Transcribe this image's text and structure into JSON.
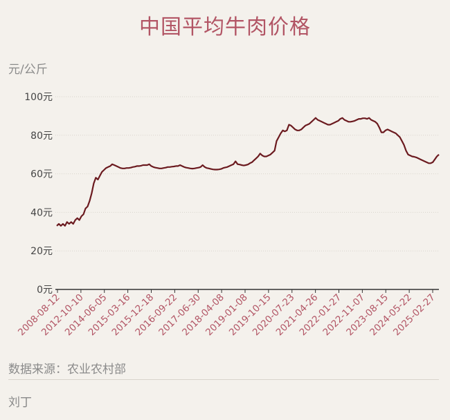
{
  "title": "中国平均牛肉价格",
  "unit_label": "元/公斤",
  "source": "数据来源：农业农村部",
  "author": "刘丁",
  "colors": {
    "line": "#6b1a1f",
    "title": "#b25565",
    "axis": "#444444",
    "tick_label": "#b25565",
    "gray_text": "#8a8a8a"
  },
  "chart_data": {
    "type": "line",
    "title": "中国平均牛肉价格",
    "ylabel": "元/公斤",
    "xlabel": "",
    "ylim": [
      0,
      100
    ],
    "grid": true,
    "yticks": [
      0,
      20,
      40,
      60,
      80,
      100
    ],
    "ytick_labels": [
      "0元",
      "20元",
      "40元",
      "60元",
      "80元",
      "100元"
    ],
    "xticks": [
      "2008-08-12",
      "2012-10-10",
      "2014-06-05",
      "2015-03-16",
      "2015-12-18",
      "2016-09-22",
      "2017-06-30",
      "2018-04-08",
      "2019-01-08",
      "2019-10-15",
      "2020-07-23",
      "2021-04-26",
      "2022-01-27",
      "2022-11-07",
      "2023-08-15",
      "2024-05-22",
      "2025-02-27"
    ],
    "series": [
      {
        "values": [
          33,
          34,
          33,
          34,
          33,
          35,
          34,
          35,
          34,
          36,
          37,
          36,
          38,
          39,
          42,
          43,
          46,
          50,
          55,
          58,
          57,
          59,
          61,
          62,
          63,
          63.5,
          64,
          65,
          64.5,
          64,
          63.5,
          63,
          62.8,
          62.8,
          63,
          63,
          63.2,
          63.5,
          63.7,
          64,
          64,
          64.2,
          64.5,
          64.5,
          64.5,
          65,
          64,
          63.5,
          63.2,
          63,
          62.8,
          62.8,
          63,
          63.2,
          63.5,
          63.5,
          63.7,
          63.8,
          64,
          64,
          64.5,
          64,
          63.5,
          63.2,
          63,
          62.8,
          62.7,
          62.8,
          63,
          63.2,
          63.5,
          64.5,
          63.5,
          63,
          62.8,
          62.5,
          62.3,
          62.2,
          62.2,
          62.3,
          62.5,
          63,
          63.3,
          63.5,
          64,
          64.5,
          65,
          66.5,
          65,
          64.8,
          64.5,
          64.3,
          64.5,
          64.8,
          65.5,
          66,
          67,
          68,
          69,
          70.5,
          69.5,
          69,
          69,
          69.5,
          70,
          71,
          72,
          77,
          79,
          81,
          82.5,
          82,
          82.5,
          85.5,
          85,
          84,
          83,
          82.5,
          82.5,
          83,
          84,
          85,
          85.5,
          86,
          87,
          88,
          89,
          88,
          87.5,
          87,
          86.5,
          86,
          85.5,
          85.5,
          86,
          86.5,
          87,
          87.5,
          88.5,
          89,
          88,
          87.5,
          87,
          87,
          87.2,
          87.5,
          88,
          88.5,
          88.5,
          88.8,
          88.8,
          88.5,
          89,
          88,
          87.5,
          87,
          86,
          84,
          81.5,
          81.5,
          82.5,
          83,
          82.5,
          82,
          81.5,
          81,
          80,
          79,
          77,
          75,
          72,
          70,
          69.5,
          69,
          68.8,
          68.5,
          68,
          67.5,
          67,
          66.5,
          66,
          65.5,
          65.5,
          66,
          67.5,
          69,
          70
        ]
      }
    ]
  }
}
